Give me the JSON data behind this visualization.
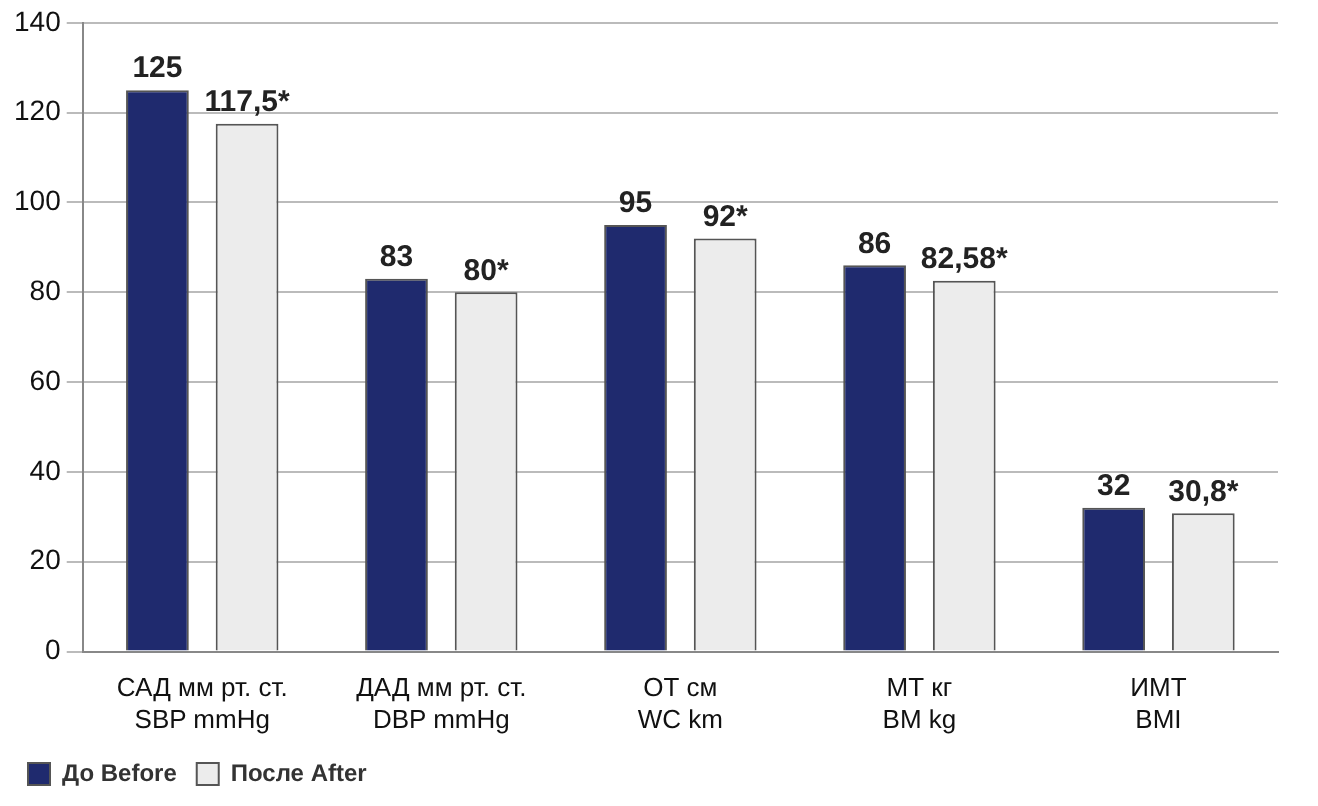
{
  "chart_data": {
    "type": "bar",
    "categories": [
      "САД мм рт. ст.\nSBP mmHg",
      "ДАД мм рт. ст.\nDBP mmHg",
      "ОТ см\nWC km",
      "МТ кг\nBM kg",
      "ИМТ\nBMI"
    ],
    "series": [
      {
        "name": "До Before",
        "color": "#1f2a6e",
        "values": [
          125,
          83,
          95,
          86,
          32
        ],
        "value_labels": [
          "125",
          "83",
          "95",
          "86",
          "32"
        ]
      },
      {
        "name": "После After",
        "color": "#ececec",
        "values": [
          117.5,
          80,
          92,
          82.58,
          30.8
        ],
        "value_labels": [
          "117,5*",
          "80*",
          "92*",
          "82,58*",
          "30,8*"
        ]
      }
    ],
    "ylim": [
      0,
      140
    ],
    "yticks": [
      0,
      20,
      40,
      60,
      80,
      100,
      120,
      140
    ],
    "grid": "y",
    "legend": "bottom left"
  }
}
